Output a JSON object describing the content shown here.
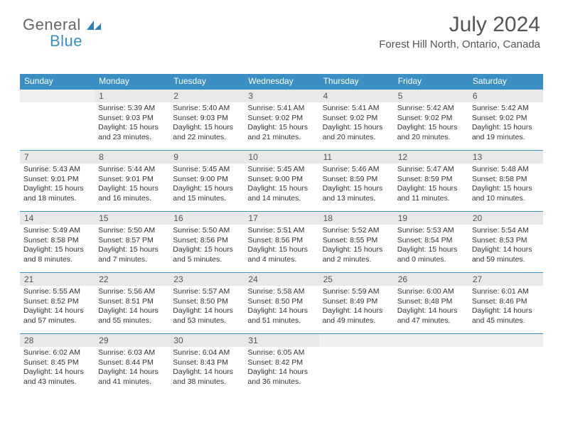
{
  "logo": {
    "part1": "General",
    "part2": "Blue"
  },
  "header": {
    "month_title": "July 2024",
    "location": "Forest Hill North, Ontario, Canada"
  },
  "colors": {
    "header_bg": "#3b8fc2",
    "header_text": "#ffffff",
    "daynum_bg": "#e8e8e8",
    "cell_border": "#3b8fc2",
    "text": "#333333",
    "title_text": "#555555"
  },
  "weekdays": [
    "Sunday",
    "Monday",
    "Tuesday",
    "Wednesday",
    "Thursday",
    "Friday",
    "Saturday"
  ],
  "first_weekday_offset": 1,
  "days": [
    {
      "n": "1",
      "sunrise": "5:39 AM",
      "sunset": "9:03 PM",
      "daylight": "15 hours and 23 minutes."
    },
    {
      "n": "2",
      "sunrise": "5:40 AM",
      "sunset": "9:03 PM",
      "daylight": "15 hours and 22 minutes."
    },
    {
      "n": "3",
      "sunrise": "5:41 AM",
      "sunset": "9:02 PM",
      "daylight": "15 hours and 21 minutes."
    },
    {
      "n": "4",
      "sunrise": "5:41 AM",
      "sunset": "9:02 PM",
      "daylight": "15 hours and 20 minutes."
    },
    {
      "n": "5",
      "sunrise": "5:42 AM",
      "sunset": "9:02 PM",
      "daylight": "15 hours and 20 minutes."
    },
    {
      "n": "6",
      "sunrise": "5:42 AM",
      "sunset": "9:02 PM",
      "daylight": "15 hours and 19 minutes."
    },
    {
      "n": "7",
      "sunrise": "5:43 AM",
      "sunset": "9:01 PM",
      "daylight": "15 hours and 18 minutes."
    },
    {
      "n": "8",
      "sunrise": "5:44 AM",
      "sunset": "9:01 PM",
      "daylight": "15 hours and 16 minutes."
    },
    {
      "n": "9",
      "sunrise": "5:45 AM",
      "sunset": "9:00 PM",
      "daylight": "15 hours and 15 minutes."
    },
    {
      "n": "10",
      "sunrise": "5:45 AM",
      "sunset": "9:00 PM",
      "daylight": "15 hours and 14 minutes."
    },
    {
      "n": "11",
      "sunrise": "5:46 AM",
      "sunset": "8:59 PM",
      "daylight": "15 hours and 13 minutes."
    },
    {
      "n": "12",
      "sunrise": "5:47 AM",
      "sunset": "8:59 PM",
      "daylight": "15 hours and 11 minutes."
    },
    {
      "n": "13",
      "sunrise": "5:48 AM",
      "sunset": "8:58 PM",
      "daylight": "15 hours and 10 minutes."
    },
    {
      "n": "14",
      "sunrise": "5:49 AM",
      "sunset": "8:58 PM",
      "daylight": "15 hours and 8 minutes."
    },
    {
      "n": "15",
      "sunrise": "5:50 AM",
      "sunset": "8:57 PM",
      "daylight": "15 hours and 7 minutes."
    },
    {
      "n": "16",
      "sunrise": "5:50 AM",
      "sunset": "8:56 PM",
      "daylight": "15 hours and 5 minutes."
    },
    {
      "n": "17",
      "sunrise": "5:51 AM",
      "sunset": "8:56 PM",
      "daylight": "15 hours and 4 minutes."
    },
    {
      "n": "18",
      "sunrise": "5:52 AM",
      "sunset": "8:55 PM",
      "daylight": "15 hours and 2 minutes."
    },
    {
      "n": "19",
      "sunrise": "5:53 AM",
      "sunset": "8:54 PM",
      "daylight": "15 hours and 0 minutes."
    },
    {
      "n": "20",
      "sunrise": "5:54 AM",
      "sunset": "8:53 PM",
      "daylight": "14 hours and 59 minutes."
    },
    {
      "n": "21",
      "sunrise": "5:55 AM",
      "sunset": "8:52 PM",
      "daylight": "14 hours and 57 minutes."
    },
    {
      "n": "22",
      "sunrise": "5:56 AM",
      "sunset": "8:51 PM",
      "daylight": "14 hours and 55 minutes."
    },
    {
      "n": "23",
      "sunrise": "5:57 AM",
      "sunset": "8:50 PM",
      "daylight": "14 hours and 53 minutes."
    },
    {
      "n": "24",
      "sunrise": "5:58 AM",
      "sunset": "8:50 PM",
      "daylight": "14 hours and 51 minutes."
    },
    {
      "n": "25",
      "sunrise": "5:59 AM",
      "sunset": "8:49 PM",
      "daylight": "14 hours and 49 minutes."
    },
    {
      "n": "26",
      "sunrise": "6:00 AM",
      "sunset": "8:48 PM",
      "daylight": "14 hours and 47 minutes."
    },
    {
      "n": "27",
      "sunrise": "6:01 AM",
      "sunset": "8:46 PM",
      "daylight": "14 hours and 45 minutes."
    },
    {
      "n": "28",
      "sunrise": "6:02 AM",
      "sunset": "8:45 PM",
      "daylight": "14 hours and 43 minutes."
    },
    {
      "n": "29",
      "sunrise": "6:03 AM",
      "sunset": "8:44 PM",
      "daylight": "14 hours and 41 minutes."
    },
    {
      "n": "30",
      "sunrise": "6:04 AM",
      "sunset": "8:43 PM",
      "daylight": "14 hours and 38 minutes."
    },
    {
      "n": "31",
      "sunrise": "6:05 AM",
      "sunset": "8:42 PM",
      "daylight": "14 hours and 36 minutes."
    }
  ],
  "labels": {
    "sunrise_prefix": "Sunrise: ",
    "sunset_prefix": "Sunset: ",
    "daylight_prefix": "Daylight: "
  }
}
